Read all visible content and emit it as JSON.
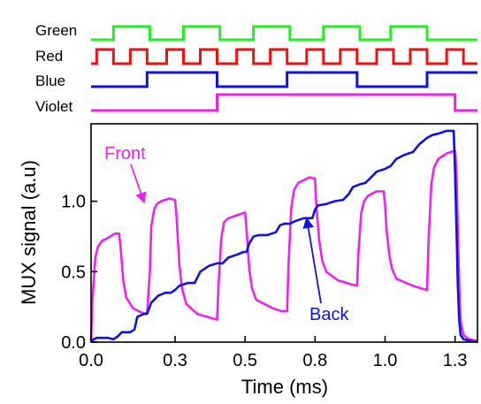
{
  "chart_data": {
    "type": "line",
    "title": "",
    "xlabel": "Time (ms)",
    "ylabel": "MUX signal (a.u)",
    "xlim": [
      0.0,
      1.38
    ],
    "ylim": [
      0.0,
      1.55
    ],
    "x_ticks": [
      {
        "value": 0.0,
        "label": "0.0"
      },
      {
        "value": 0.3,
        "label": "0.3"
      },
      {
        "value": 0.55,
        "label": "0.5"
      },
      {
        "value": 0.8,
        "label": "0.8"
      },
      {
        "value": 1.05,
        "label": "1.0"
      },
      {
        "value": 1.3,
        "label": "1.3"
      }
    ],
    "y_ticks": [
      {
        "value": 0.0,
        "label": "0.0"
      },
      {
        "value": 0.5,
        "label": "0.5"
      },
      {
        "value": 1.0,
        "label": "1.0"
      }
    ],
    "grid": false,
    "control_traces": [
      {
        "name": "Green",
        "color": "#22ee22",
        "high": [
          [
            0.08,
            0.21
          ],
          [
            0.33,
            0.46
          ],
          [
            0.58,
            0.71
          ],
          [
            0.83,
            0.96
          ],
          [
            1.07,
            1.2
          ]
        ]
      },
      {
        "name": "Red",
        "color": "#ee1111",
        "high": [
          [
            0.02,
            0.08
          ],
          [
            0.14,
            0.2
          ],
          [
            0.27,
            0.33
          ],
          [
            0.39,
            0.45
          ],
          [
            0.52,
            0.58
          ],
          [
            0.64,
            0.7
          ],
          [
            0.77,
            0.83
          ],
          [
            0.89,
            0.95
          ],
          [
            1.02,
            1.08
          ],
          [
            1.14,
            1.2
          ],
          [
            1.27,
            1.33
          ]
        ]
      },
      {
        "name": "Blue",
        "color": "#1111dd",
        "high": [
          [
            0.2,
            0.45
          ],
          [
            0.7,
            0.95
          ],
          [
            1.2,
            1.38
          ]
        ]
      },
      {
        "name": "Violet",
        "color": "#ee22ee",
        "high": [
          [
            0.45,
            1.3
          ]
        ]
      }
    ],
    "series": [
      {
        "name": "Front",
        "color": "#ee22ee",
        "x": [
          0.0,
          0.005,
          0.015,
          0.025,
          0.04,
          0.06,
          0.085,
          0.1,
          0.105,
          0.115,
          0.125,
          0.15,
          0.18,
          0.2,
          0.21,
          0.215,
          0.225,
          0.235,
          0.25,
          0.28,
          0.3,
          0.305,
          0.315,
          0.325,
          0.34,
          0.38,
          0.43,
          0.45,
          0.455,
          0.465,
          0.475,
          0.49,
          0.52,
          0.55,
          0.555,
          0.565,
          0.575,
          0.59,
          0.65,
          0.68,
          0.7,
          0.705,
          0.715,
          0.725,
          0.74,
          0.76,
          0.78,
          0.8,
          0.805,
          0.815,
          0.825,
          0.84,
          0.88,
          0.93,
          0.95,
          0.955,
          0.965,
          0.975,
          0.99,
          1.02,
          1.045,
          1.05,
          1.055,
          1.065,
          1.075,
          1.09,
          1.15,
          1.18,
          1.2,
          1.205,
          1.215,
          1.225,
          1.24,
          1.27,
          1.3,
          1.305,
          1.31,
          1.315,
          1.32,
          1.33,
          1.35,
          1.38
        ],
        "y": [
          0.0,
          0.3,
          0.6,
          0.68,
          0.72,
          0.74,
          0.77,
          0.77,
          0.68,
          0.44,
          0.32,
          0.24,
          0.21,
          0.2,
          0.5,
          0.82,
          0.94,
          0.98,
          1.0,
          1.02,
          1.01,
          0.9,
          0.55,
          0.38,
          0.27,
          0.2,
          0.17,
          0.16,
          0.4,
          0.74,
          0.85,
          0.88,
          0.9,
          0.92,
          0.8,
          0.52,
          0.38,
          0.3,
          0.24,
          0.22,
          0.22,
          0.55,
          0.95,
          1.08,
          1.13,
          1.15,
          1.17,
          1.16,
          0.95,
          0.72,
          0.58,
          0.5,
          0.44,
          0.41,
          0.4,
          0.64,
          0.92,
          1.0,
          1.04,
          1.07,
          1.07,
          0.98,
          0.8,
          0.62,
          0.52,
          0.45,
          0.4,
          0.38,
          0.37,
          0.7,
          1.12,
          1.24,
          1.3,
          1.34,
          1.36,
          1.2,
          0.8,
          0.4,
          0.15,
          0.05,
          0.02,
          0.01
        ]
      },
      {
        "name": "Back",
        "color": "#1111dd",
        "x": [
          0.0,
          0.01,
          0.02,
          0.06,
          0.08,
          0.095,
          0.11,
          0.14,
          0.155,
          0.165,
          0.19,
          0.2,
          0.215,
          0.24,
          0.265,
          0.285,
          0.3,
          0.315,
          0.345,
          0.37,
          0.39,
          0.42,
          0.45,
          0.47,
          0.49,
          0.52,
          0.545,
          0.555,
          0.565,
          0.58,
          0.6,
          0.63,
          0.66,
          0.675,
          0.69,
          0.71,
          0.73,
          0.76,
          0.79,
          0.8,
          0.81,
          0.84,
          0.87,
          0.9,
          0.92,
          0.935,
          0.96,
          0.98,
          1.0,
          1.02,
          1.05,
          1.07,
          1.09,
          1.12,
          1.15,
          1.17,
          1.2,
          1.22,
          1.24,
          1.27,
          1.295,
          1.3,
          1.305,
          1.31,
          1.315,
          1.32,
          1.33,
          1.35,
          1.38
        ],
        "y": [
          0.0,
          0.02,
          0.03,
          0.03,
          0.02,
          0.04,
          0.07,
          0.07,
          0.09,
          0.18,
          0.2,
          0.2,
          0.28,
          0.33,
          0.35,
          0.35,
          0.37,
          0.4,
          0.42,
          0.42,
          0.5,
          0.54,
          0.56,
          0.56,
          0.6,
          0.62,
          0.64,
          0.64,
          0.7,
          0.75,
          0.76,
          0.76,
          0.78,
          0.83,
          0.84,
          0.84,
          0.86,
          0.88,
          0.88,
          0.94,
          0.97,
          0.98,
          1.0,
          1.01,
          1.05,
          1.1,
          1.12,
          1.13,
          1.17,
          1.21,
          1.23,
          1.25,
          1.3,
          1.33,
          1.35,
          1.4,
          1.45,
          1.47,
          1.48,
          1.5,
          1.5,
          1.2,
          0.8,
          0.4,
          0.15,
          0.05,
          0.02,
          0.01,
          0.0
        ]
      }
    ],
    "annotations": [
      {
        "text": "Front",
        "color": "#ee22ee",
        "target": [
          0.19,
          0.99
        ]
      },
      {
        "text": "Back",
        "color": "#1111dd",
        "target": [
          0.77,
          0.88
        ]
      }
    ]
  }
}
